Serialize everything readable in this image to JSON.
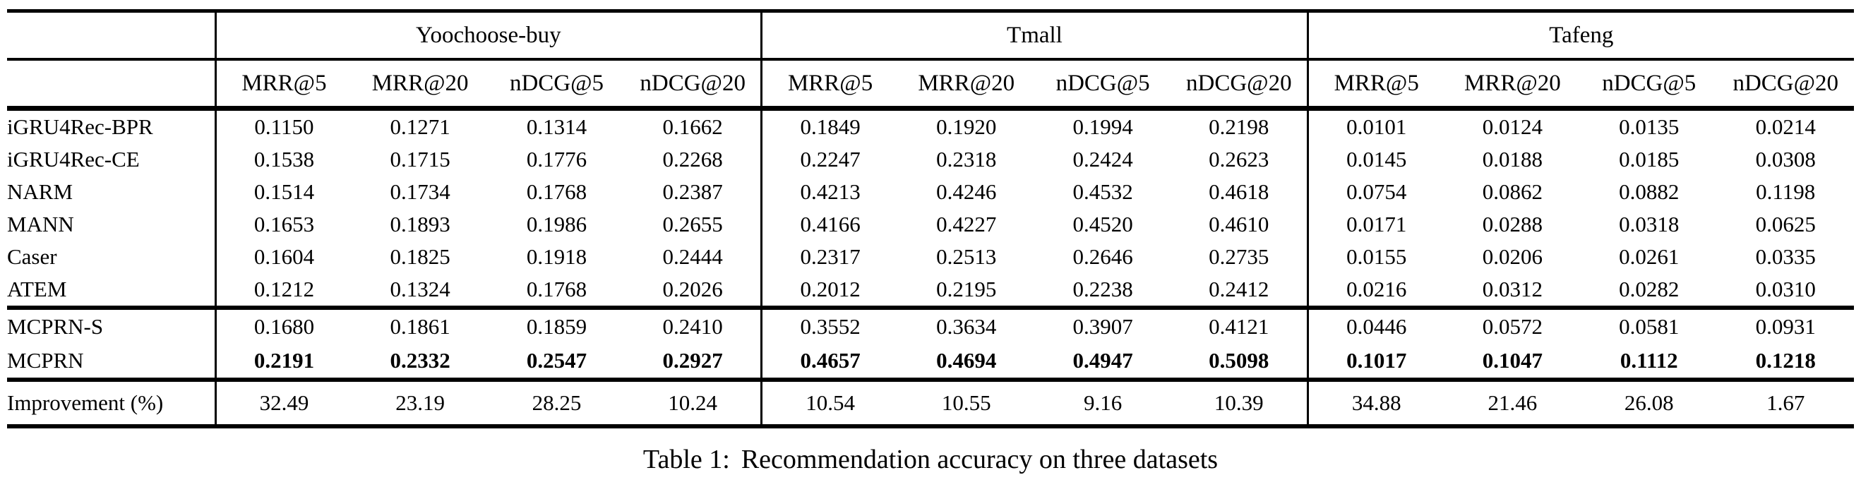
{
  "table": {
    "groups": [
      "Yoochoose-buy",
      "Tmall",
      "Tafeng"
    ],
    "metrics": [
      "MRR@5",
      "MRR@20",
      "nDCG@5",
      "nDCG@20"
    ],
    "sections": [
      {
        "rows": [
          {
            "model": "iGRU4Rec-BPR",
            "bold": false,
            "values": [
              "0.1150",
              "0.1271",
              "0.1314",
              "0.1662",
              "0.1849",
              "0.1920",
              "0.1994",
              "0.2198",
              "0.0101",
              "0.0124",
              "0.0135",
              "0.0214"
            ]
          },
          {
            "model": "iGRU4Rec-CE",
            "bold": false,
            "values": [
              "0.1538",
              "0.1715",
              "0.1776",
              "0.2268",
              "0.2247",
              "0.2318",
              "0.2424",
              "0.2623",
              "0.0145",
              "0.0188",
              "0.0185",
              "0.0308"
            ]
          },
          {
            "model": "NARM",
            "bold": false,
            "values": [
              "0.1514",
              "0.1734",
              "0.1768",
              "0.2387",
              "0.4213",
              "0.4246",
              "0.4532",
              "0.4618",
              "0.0754",
              "0.0862",
              "0.0882",
              "0.1198"
            ]
          },
          {
            "model": "MANN",
            "bold": false,
            "values": [
              "0.1653",
              "0.1893",
              "0.1986",
              "0.2655",
              "0.4166",
              "0.4227",
              "0.4520",
              "0.4610",
              "0.0171",
              "0.0288",
              "0.0318",
              "0.0625"
            ]
          },
          {
            "model": "Caser",
            "bold": false,
            "values": [
              "0.1604",
              "0.1825",
              "0.1918",
              "0.2444",
              "0.2317",
              "0.2513",
              "0.2646",
              "0.2735",
              "0.0155",
              "0.0206",
              "0.0261",
              "0.0335"
            ]
          },
          {
            "model": "ATEM",
            "bold": false,
            "values": [
              "0.1212",
              "0.1324",
              "0.1768",
              "0.2026",
              "0.2012",
              "0.2195",
              "0.2238",
              "0.2412",
              "0.0216",
              "0.0312",
              "0.0282",
              "0.0310"
            ]
          }
        ]
      },
      {
        "rows": [
          {
            "model": "MCPRN-S",
            "bold": false,
            "values": [
              "0.1680",
              "0.1861",
              "0.1859",
              "0.2410",
              "0.3552",
              "0.3634",
              "0.3907",
              "0.4121",
              "0.0446",
              "0.0572",
              "0.0581",
              "0.0931"
            ]
          },
          {
            "model": "MCPRN",
            "bold": true,
            "values": [
              "0.2191",
              "0.2332",
              "0.2547",
              "0.2927",
              "0.4657",
              "0.4694",
              "0.4947",
              "0.5098",
              "0.1017",
              "0.1047",
              "0.1112",
              "0.1218"
            ]
          }
        ]
      },
      {
        "rows": [
          {
            "model": "Improvement (%)",
            "bold": false,
            "values": [
              "32.49",
              "23.19",
              "28.25",
              "10.24",
              "10.54",
              "10.55",
              "9.16",
              "10.39",
              "34.88",
              "21.46",
              "26.08",
              "1.67"
            ]
          }
        ]
      }
    ],
    "caption_label": "Table 1:",
    "caption_text": "Recommendation accuracy on three datasets"
  }
}
